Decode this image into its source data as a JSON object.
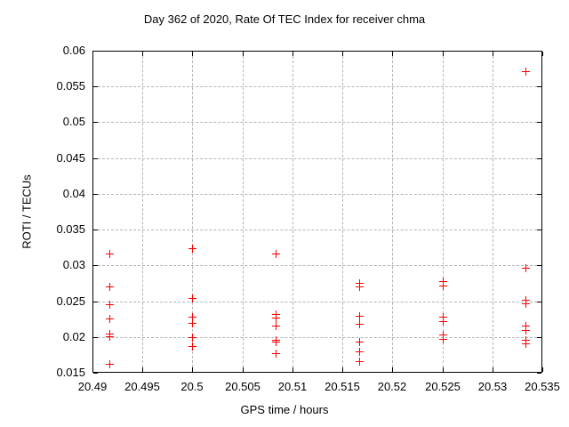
{
  "page": {
    "background": "#ffffff"
  },
  "chart_data": {
    "type": "scatter",
    "title": "Day 362 of 2020, Rate Of TEC Index for receiver chma",
    "xlabel": "GPS time / hours",
    "ylabel": "ROTI / TECUs",
    "xlim": [
      20.49,
      20.535
    ],
    "ylim": [
      0.015,
      0.06
    ],
    "xticks": [
      "20.49",
      "20.495",
      "20.5",
      "20.505",
      "20.51",
      "20.515",
      "20.52",
      "20.525",
      "20.53",
      "20.535"
    ],
    "yticks": [
      "0.015",
      "0.02",
      "0.025",
      "0.03",
      "0.035",
      "0.04",
      "0.045",
      "0.05",
      "0.055",
      "0.06"
    ],
    "grid": true,
    "legend_position": "none",
    "marker_shape": "plus",
    "marker_color": "#ff0000",
    "grid_color": "#b4b4b4",
    "axis_color": "#000000",
    "series": [
      {
        "name": "ROTI",
        "points": [
          [
            20.4917,
            0.0316
          ],
          [
            20.4917,
            0.0271
          ],
          [
            20.4917,
            0.0246
          ],
          [
            20.4917,
            0.0226
          ],
          [
            20.4917,
            0.0205
          ],
          [
            20.4917,
            0.0201
          ],
          [
            20.4917,
            0.0163
          ],
          [
            20.5,
            0.0324
          ],
          [
            20.5,
            0.0255
          ],
          [
            20.5,
            0.0228
          ],
          [
            20.5,
            0.022
          ],
          [
            20.5,
            0.02
          ],
          [
            20.5,
            0.0187
          ],
          [
            20.5083,
            0.0317
          ],
          [
            20.5083,
            0.0232
          ],
          [
            20.5083,
            0.0227
          ],
          [
            20.5083,
            0.0216
          ],
          [
            20.5083,
            0.0196
          ],
          [
            20.5083,
            0.0193
          ],
          [
            20.5083,
            0.0177
          ],
          [
            20.5167,
            0.0275
          ],
          [
            20.5167,
            0.027
          ],
          [
            20.5167,
            0.023
          ],
          [
            20.5167,
            0.0218
          ],
          [
            20.5167,
            0.0194
          ],
          [
            20.5167,
            0.018
          ],
          [
            20.5167,
            0.0166
          ],
          [
            20.525,
            0.0278
          ],
          [
            20.525,
            0.0272
          ],
          [
            20.525,
            0.0228
          ],
          [
            20.525,
            0.0222
          ],
          [
            20.525,
            0.0203
          ],
          [
            20.525,
            0.0197
          ],
          [
            20.5333,
            0.0572
          ],
          [
            20.5333,
            0.0297
          ],
          [
            20.5333,
            0.0252
          ],
          [
            20.5333,
            0.0247
          ],
          [
            20.5333,
            0.0216
          ],
          [
            20.5333,
            0.021
          ],
          [
            20.5333,
            0.0196
          ],
          [
            20.5333,
            0.0191
          ]
        ]
      }
    ]
  }
}
